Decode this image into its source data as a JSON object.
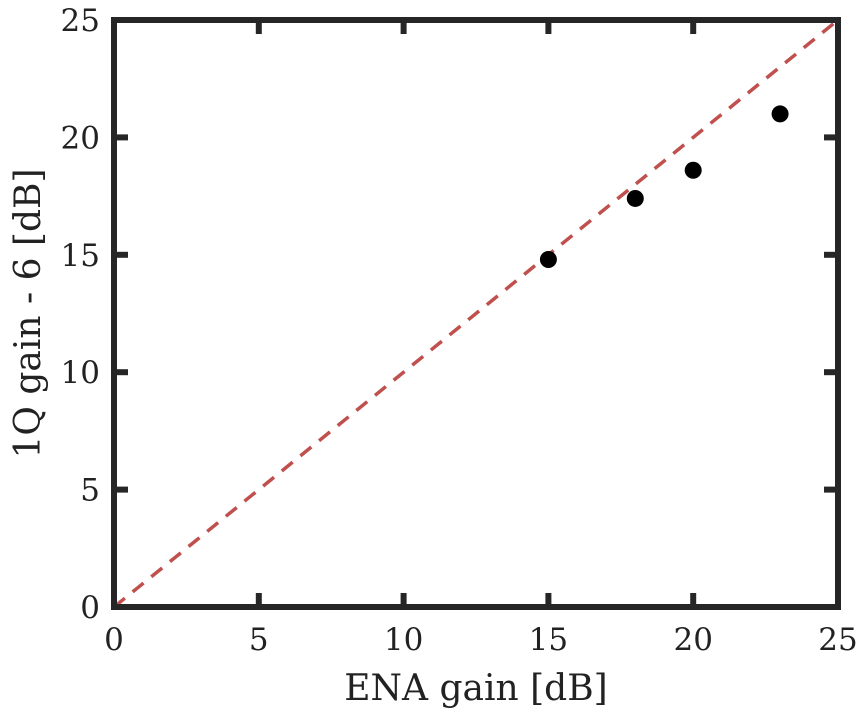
{
  "chart_data": {
    "type": "scatter",
    "title": "",
    "xlabel": "ENA gain [dB]",
    "ylabel": "1Q gain - 6 [dB]",
    "xlim": [
      0,
      25
    ],
    "ylim": [
      0,
      25
    ],
    "xticks": [
      0,
      5,
      10,
      15,
      20,
      25
    ],
    "yticks": [
      0,
      5,
      10,
      15,
      20,
      25
    ],
    "grid": false,
    "legend": "none",
    "series": [
      {
        "kind": "points",
        "color": "#000000",
        "x": [
          15,
          18,
          20,
          23
        ],
        "y": [
          14.8,
          17.4,
          18.6,
          21.0
        ]
      },
      {
        "kind": "reference-line",
        "style": "dashed",
        "color": "#c0504d",
        "x": [
          0,
          25
        ],
        "y": [
          0,
          25
        ]
      }
    ],
    "axis_color": "#262626"
  }
}
